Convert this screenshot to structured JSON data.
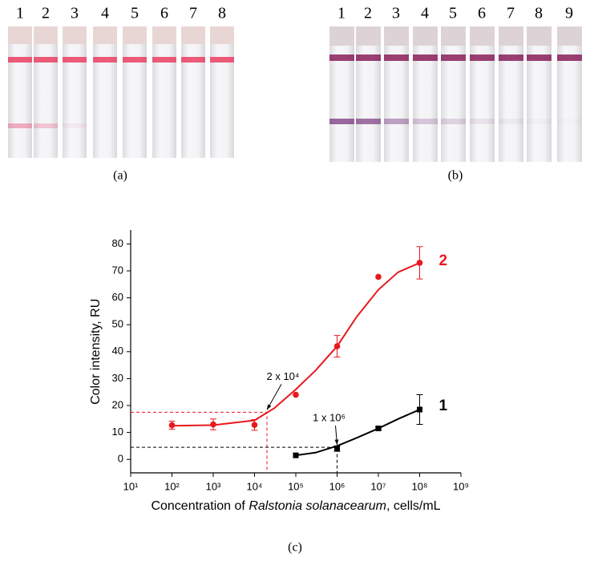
{
  "panels": {
    "a": {
      "label": "(a)",
      "strip_labels": [
        "1",
        "2",
        "3",
        "4",
        "5",
        "6",
        "7",
        "8"
      ]
    },
    "b": {
      "label": "(b)",
      "strip_labels": [
        "1",
        "2",
        "3",
        "4",
        "5",
        "6",
        "7",
        "8",
        "9"
      ]
    },
    "c": {
      "label": "(c)"
    }
  },
  "chart_data": {
    "type": "scatter",
    "xlabel": [
      "Concentration of ",
      "Ralstonia solanacearum",
      ", cells/mL"
    ],
    "ylabel": "Color intensity, RU",
    "log_x": true,
    "xlim": [
      10,
      1000000000
    ],
    "xticks": [
      {
        "value": 10,
        "label": "10¹"
      },
      {
        "value": 100,
        "label": "10²"
      },
      {
        "value": 1000,
        "label": "10³"
      },
      {
        "value": 10000,
        "label": "10⁴"
      },
      {
        "value": 100000,
        "label": "10⁵"
      },
      {
        "value": 1000000,
        "label": "10⁶"
      },
      {
        "value": 10000000,
        "label": "10⁷"
      },
      {
        "value": 100000000,
        "label": "10⁸"
      },
      {
        "value": 1000000000,
        "label": "10⁹"
      }
    ],
    "ylim": [
      -5,
      85
    ],
    "yticks": [
      0,
      10,
      20,
      30,
      40,
      50,
      60,
      70,
      80
    ],
    "series": [
      {
        "name": "2",
        "color": "#e8191e",
        "marker": "circle",
        "x": [
          100,
          1000,
          10000,
          100000,
          1000000,
          10000000,
          100000000
        ],
        "values": [
          12.7,
          13,
          12.8,
          24,
          42,
          67.8,
          73
        ],
        "errors": [
          1.5,
          2,
          2,
          0,
          4,
          0,
          6
        ],
        "fit_x": [
          100,
          1000,
          10000,
          30000,
          100000,
          300000,
          1000000,
          3000000,
          10000000,
          30000000,
          100000000
        ],
        "fit_values": [
          12.5,
          12.7,
          14.5,
          19,
          26,
          33,
          42,
          53,
          63,
          69.5,
          73
        ]
      },
      {
        "name": "1",
        "color": "#000000",
        "marker": "square",
        "x": [
          100000,
          1000000,
          10000000,
          100000000
        ],
        "values": [
          1.5,
          4,
          11.5,
          18.5
        ],
        "errors": [
          0,
          1,
          0.5,
          5.5
        ],
        "fit_x": [
          100000,
          300000,
          1000000,
          3000000,
          10000000,
          30000000,
          100000000
        ],
        "fit_values": [
          1.5,
          2.5,
          5,
          8,
          11.5,
          15,
          18.5
        ]
      }
    ],
    "reference_lines": [
      {
        "x": 20000,
        "y": 17.5,
        "color": "#e8191e"
      },
      {
        "x": 1000000,
        "y": 4.5,
        "color": "#000000"
      }
    ],
    "annotations": [
      {
        "text": "2 x 10⁴",
        "x": 20000,
        "y": 17.5
      },
      {
        "text": "1 x 10⁶",
        "x": 1000000,
        "y": 4.5
      }
    ]
  }
}
